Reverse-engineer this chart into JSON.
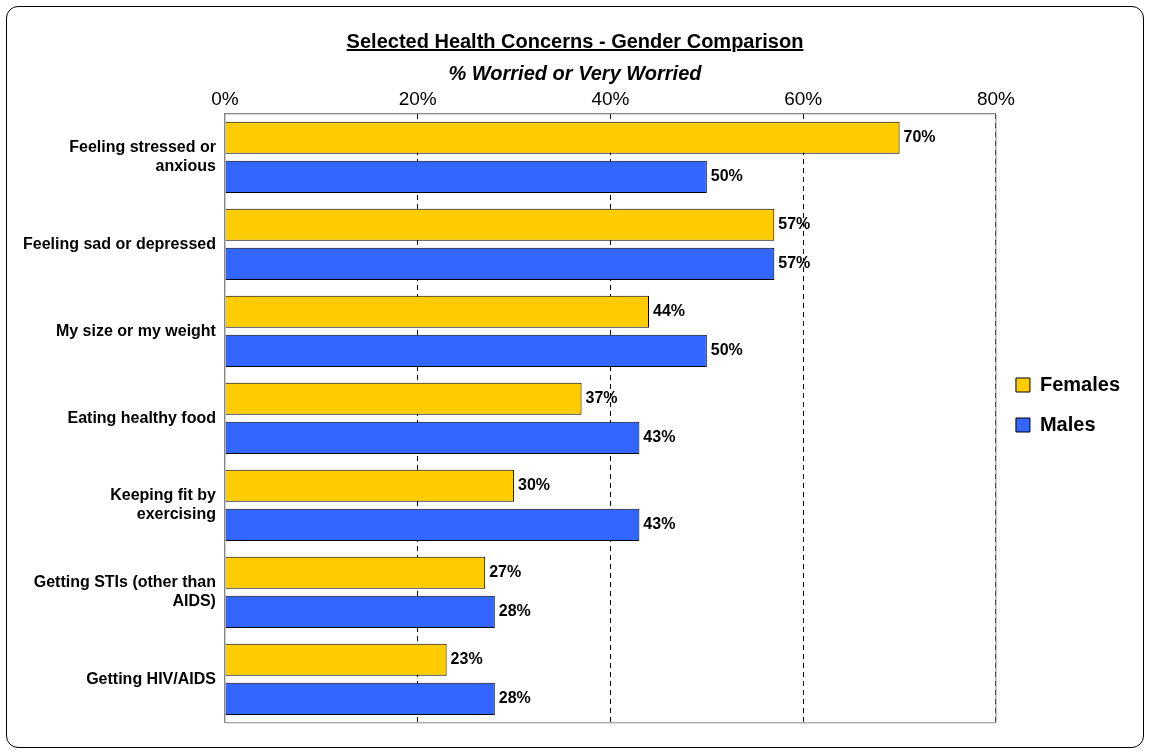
{
  "chart_data": {
    "type": "bar",
    "orientation": "horizontal",
    "title": "Selected Health Concerns - Gender Comparison",
    "subtitle": "% Worried or Very Worried",
    "categories": [
      "Feeling stressed or anxious",
      "Feeling sad or depressed",
      "My size or my weight",
      "Eating healthy food",
      "Keeping fit by exercising",
      "Getting STIs (other than AIDS)",
      "Getting HIV/AIDS"
    ],
    "series": [
      {
        "name": "Females",
        "color": "#ffcc00",
        "values": [
          70,
          57,
          44,
          37,
          30,
          27,
          23
        ],
        "value_labels": [
          "70%",
          "57%",
          "44%",
          "37%",
          "30%",
          "27%",
          "23%"
        ]
      },
      {
        "name": "Males",
        "color": "#3366ff",
        "values": [
          50,
          57,
          50,
          43,
          43,
          28,
          28
        ],
        "value_labels": [
          "50%",
          "57%",
          "50%",
          "43%",
          "43%",
          "28%",
          "28%"
        ]
      }
    ],
    "xlim": [
      0,
      80
    ],
    "xticks": [
      {
        "value": 0,
        "label": "0%"
      },
      {
        "value": 20,
        "label": "20%"
      },
      {
        "value": 40,
        "label": "40%"
      },
      {
        "value": 60,
        "label": "60%"
      },
      {
        "value": 80,
        "label": "80%"
      }
    ],
    "grid": "x",
    "legend": "right"
  }
}
